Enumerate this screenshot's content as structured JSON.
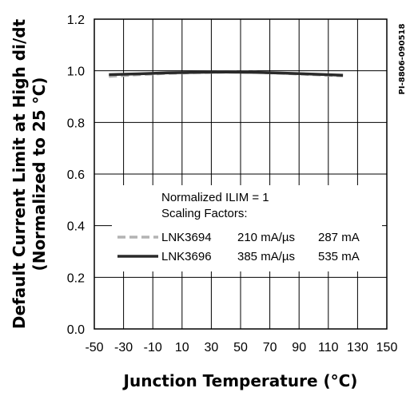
{
  "chart_data": {
    "type": "line",
    "xlabel": "Junction Temperature (°C)",
    "ylabel_line1": "Default Current Limit at High di/dt",
    "ylabel_line2": "(Normalized to 25 °C)",
    "xlim": [
      -50,
      150
    ],
    "ylim": [
      0.0,
      1.2
    ],
    "x_ticks": [
      -50,
      -30,
      -10,
      10,
      30,
      50,
      70,
      90,
      110,
      130,
      150
    ],
    "y_ticks": [
      0.0,
      0.2,
      0.4,
      0.6,
      0.8,
      1.0,
      1.2
    ],
    "y_tick_labels": [
      "0.0",
      "0.2",
      "0.4",
      "0.6",
      "0.8",
      "1.0",
      "1.2"
    ],
    "grid": true,
    "side_id": "PI-8806-090518",
    "legend": {
      "header_line1": "Normalized ILIM = 1",
      "header_line2": "Scaling Factors:"
    },
    "series": [
      {
        "name": "LNK3694",
        "di_dt": "210 mA/µs",
        "current": "287 mA",
        "style": "dashed",
        "color": "#b3b3b3",
        "x": [
          -40,
          -20,
          0,
          20,
          40,
          60,
          80,
          100,
          120
        ],
        "y": [
          0.978,
          0.985,
          0.99,
          0.993,
          0.995,
          0.994,
          0.99,
          0.985,
          0.98
        ]
      },
      {
        "name": "LNK3696",
        "di_dt": "385 mA/µs",
        "current": "535 mA",
        "style": "solid",
        "color": "#2a2a2a",
        "x": [
          -40,
          -20,
          0,
          20,
          40,
          60,
          80,
          100,
          120
        ],
        "y": [
          0.985,
          0.988,
          0.992,
          0.994,
          0.995,
          0.994,
          0.991,
          0.987,
          0.983
        ]
      }
    ]
  }
}
